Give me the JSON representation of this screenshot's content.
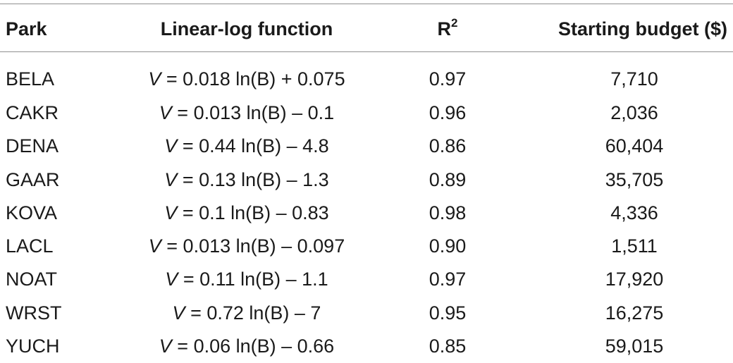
{
  "headers": {
    "park": "Park",
    "function": "Linear-log function",
    "r2_base": "R",
    "r2_sup": "2",
    "budget": "Starting budget ($)"
  },
  "rows": [
    {
      "park": "BELA",
      "var": "V",
      "fn": " = 0.018 ln(B) + 0.075",
      "r2": "0.97",
      "budget": "7,710"
    },
    {
      "park": "CAKR",
      "var": "V",
      "fn": " = 0.013 ln(B) – 0.1",
      "r2": "0.96",
      "budget": "2,036"
    },
    {
      "park": "DENA",
      "var": "V",
      "fn": " = 0.44 ln(B) – 4.8",
      "r2": "0.86",
      "budget": "60,404"
    },
    {
      "park": "GAAR",
      "var": "V",
      "fn": " = 0.13 ln(B) – 1.3",
      "r2": "0.89",
      "budget": "35,705"
    },
    {
      "park": "KOVA",
      "var": "V",
      "fn": " = 0.1 ln(B) – 0.83",
      "r2": "0.98",
      "budget": "4,336"
    },
    {
      "park": "LACL",
      "var": "V",
      "fn": " = 0.013 ln(B) – 0.097",
      "r2": "0.90",
      "budget": "1,511"
    },
    {
      "park": "NOAT",
      "var": "V",
      "fn": " = 0.11 ln(B) – 1.1",
      "r2": "0.97",
      "budget": "17,920"
    },
    {
      "park": "WRST",
      "var": "V",
      "fn": " = 0.72 ln(B) – 7",
      "r2": "0.95",
      "budget": "16,275"
    },
    {
      "park": "YUCH",
      "var": "V",
      "fn": " =  0.06 ln(B) – 0.66",
      "r2": "0.85",
      "budget": "59,015"
    }
  ]
}
